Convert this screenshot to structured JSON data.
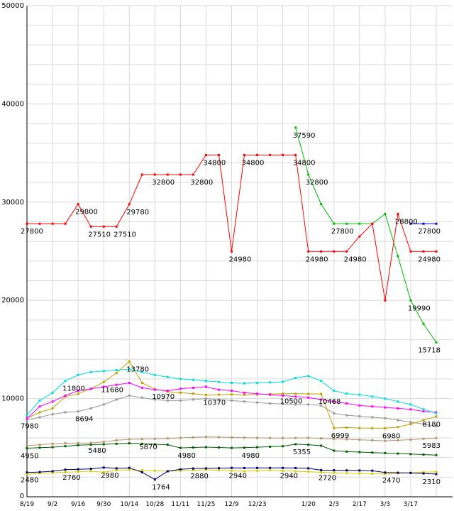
{
  "page": {
    "background": "#ffffff"
  },
  "chart_data": {
    "type": "line",
    "title": "",
    "x_count": 33,
    "ylim": [
      0,
      50000
    ],
    "y_ticks": [
      0,
      10000,
      20000,
      30000,
      40000,
      50000
    ],
    "y_minor_step": 2000,
    "grid_color": "#d9d9d9",
    "axis_color": "#000000",
    "label_color": "#000000",
    "x_ticks": [
      {
        "i": 0,
        "label": "8/19"
      },
      {
        "i": 2,
        "label": "9/2"
      },
      {
        "i": 4,
        "label": "9/16"
      },
      {
        "i": 6,
        "label": "9/30"
      },
      {
        "i": 8,
        "label": "10/14"
      },
      {
        "i": 10,
        "label": "10/28"
      },
      {
        "i": 12,
        "label": "11/11"
      },
      {
        "i": 14,
        "label": "11/25"
      },
      {
        "i": 16,
        "label": "12/9"
      },
      {
        "i": 18,
        "label": "12/23"
      },
      {
        "i": 22,
        "label": "1/20"
      },
      {
        "i": 24,
        "label": "2/3"
      },
      {
        "i": 26,
        "label": "2/17"
      },
      {
        "i": 28,
        "label": "3/3"
      },
      {
        "i": 30,
        "label": "3/17"
      }
    ],
    "series": [
      {
        "name": "yellow",
        "color": "#ddcc00",
        "values": [
          2300,
          2400,
          2450,
          2500,
          2550,
          2600,
          2500,
          2700,
          2750,
          2700,
          2650,
          2600,
          2650,
          2700,
          2750,
          2700,
          2650,
          2600,
          2650,
          2700,
          2650,
          2600,
          2550,
          2500,
          2450,
          2400,
          2380,
          2350,
          2320,
          2400,
          2450,
          2500,
          2550
        ]
      },
      {
        "name": "navy",
        "color": "#000066",
        "values": [
          2480,
          2520,
          2600,
          2760,
          2800,
          2850,
          2980,
          2900,
          2950,
          2500,
          1764,
          2600,
          2800,
          2880,
          2900,
          2910,
          2940,
          2930,
          2940,
          2940,
          2940,
          2930,
          2900,
          2720,
          2700,
          2690,
          2680,
          2660,
          2470,
          2450,
          2430,
          2380,
          2310
        ]
      },
      {
        "name": "darkgreen",
        "color": "#005f00",
        "values": [
          4950,
          5000,
          5050,
          5150,
          5250,
          5300,
          5350,
          5400,
          5450,
          5400,
          5350,
          5300,
          4980,
          5020,
          5060,
          5020,
          4980,
          5000,
          5050,
          5100,
          5150,
          5355,
          5300,
          5200,
          4700,
          4600,
          4550,
          4500,
          4450,
          4400,
          4350,
          4300,
          4250
        ]
      },
      {
        "name": "tan",
        "color": "#b49569",
        "values": [
          5200,
          5300,
          5400,
          5450,
          5470,
          5480,
          5600,
          5750,
          5850,
          5870,
          5900,
          5950,
          6000,
          6050,
          6100,
          6080,
          6050,
          6020,
          6000,
          5990,
          5980,
          5990,
          6000,
          5950,
          5900,
          5850,
          5800,
          5750,
          5700,
          5750,
          5820,
          5900,
          5983
        ]
      },
      {
        "name": "gray",
        "color": "#999999",
        "values": [
          7800,
          8100,
          8400,
          8600,
          8694,
          9000,
          9400,
          9900,
          10300,
          10100,
          9900,
          9800,
          9800,
          9900,
          10000,
          9900,
          9800,
          9700,
          9600,
          9500,
          9450,
          9400,
          9400,
          9300,
          8500,
          8300,
          8200,
          8100,
          8000,
          7800,
          7600,
          7400,
          7200
        ]
      },
      {
        "name": "gold",
        "color": "#c0a000",
        "values": [
          8000,
          8600,
          9000,
          10200,
          10500,
          11000,
          11680,
          12600,
          13780,
          11600,
          10970,
          10700,
          10600,
          10500,
          10370,
          10400,
          10420,
          10380,
          10420,
          10460,
          10500,
          10490,
          10480,
          10468,
          6999,
          7050,
          7000,
          6990,
          6980,
          7100,
          7400,
          7800,
          8180
        ]
      },
      {
        "name": "magenta",
        "color": "#ff00ff",
        "values": [
          7980,
          9200,
          9700,
          10300,
          10800,
          11000,
          11200,
          11400,
          11600,
          11100,
          10900,
          10800,
          11000,
          11100,
          11200,
          10900,
          10800,
          10600,
          10500,
          10400,
          10300,
          10200,
          10100,
          9900,
          9700,
          9500,
          9300,
          9200,
          9100,
          9000,
          8900,
          8700,
          8600
        ]
      },
      {
        "name": "cyan",
        "color": "#00dddd",
        "values": [
          8300,
          9800,
          10600,
          11800,
          12400,
          12700,
          12800,
          12900,
          13000,
          12700,
          12400,
          12200,
          12000,
          11900,
          11800,
          11700,
          11600,
          11550,
          11600,
          11650,
          11700,
          12100,
          12300,
          11800,
          10800,
          10500,
          10400,
          10200,
          10000,
          9700,
          9400,
          8900,
          8500
        ]
      },
      {
        "name": "blue",
        "color": "#0000dd",
        "values": [
          null,
          null,
          null,
          null,
          null,
          null,
          null,
          null,
          null,
          null,
          null,
          null,
          null,
          null,
          null,
          null,
          null,
          null,
          null,
          null,
          null,
          null,
          null,
          null,
          null,
          null,
          null,
          null,
          null,
          null,
          27800,
          27800,
          27800
        ]
      },
      {
        "name": "green",
        "color": "#00bb00",
        "values": [
          null,
          null,
          null,
          null,
          null,
          null,
          null,
          null,
          null,
          null,
          null,
          null,
          null,
          null,
          null,
          null,
          null,
          null,
          null,
          null,
          null,
          37590,
          32800,
          29800,
          27800,
          27800,
          27800,
          27800,
          28800,
          24500,
          19990,
          17600,
          15718
        ]
      },
      {
        "name": "red",
        "color": "#ff0000",
        "values": [
          27800,
          27800,
          27800,
          27800,
          29800,
          27510,
          27510,
          27510,
          29780,
          32800,
          32800,
          32800,
          32800,
          32800,
          34800,
          34800,
          24980,
          34800,
          34800,
          34800,
          34800,
          34800,
          24980,
          24980,
          24980,
          24980,
          26500,
          27800,
          19990,
          28800,
          24980,
          24980,
          24980
        ]
      }
    ],
    "annotations": [
      {
        "series": "red",
        "i": 0,
        "text": "27800"
      },
      {
        "series": "red",
        "i": 4,
        "text": "29800"
      },
      {
        "series": "red",
        "i": 5,
        "text": "27510"
      },
      {
        "series": "red",
        "i": 7,
        "text": "27510"
      },
      {
        "series": "red",
        "i": 8,
        "text": "29780"
      },
      {
        "series": "red",
        "i": 10,
        "text": "32800"
      },
      {
        "series": "red",
        "i": 13,
        "text": "32800"
      },
      {
        "series": "red",
        "i": 14,
        "text": "34800"
      },
      {
        "series": "red",
        "i": 16,
        "text": "24980"
      },
      {
        "series": "red",
        "i": 17,
        "text": "34800"
      },
      {
        "series": "red",
        "i": 21,
        "text": "34800"
      },
      {
        "series": "red",
        "i": 22,
        "text": "24980"
      },
      {
        "series": "red",
        "i": 25,
        "text": "24980"
      },
      {
        "series": "red",
        "i": 29,
        "text": "28800"
      },
      {
        "series": "red",
        "i": 32,
        "text": "24980"
      },
      {
        "series": "green",
        "i": 21,
        "text": "37590"
      },
      {
        "series": "green",
        "i": 22,
        "text": "32800"
      },
      {
        "series": "green",
        "i": 24,
        "text": "27800"
      },
      {
        "series": "green",
        "i": 30,
        "text": "19990"
      },
      {
        "series": "green",
        "i": 32,
        "text": "15718"
      },
      {
        "series": "blue",
        "i": 32,
        "text": "27800"
      },
      {
        "series": "cyan",
        "i": 3,
        "text": "11800"
      },
      {
        "series": "magenta",
        "i": 0,
        "text": "7980"
      },
      {
        "series": "gold",
        "i": 6,
        "text": "11680"
      },
      {
        "series": "gold",
        "i": 8,
        "text": "13780"
      },
      {
        "series": "gold",
        "i": 10,
        "text": "10970"
      },
      {
        "series": "gold",
        "i": 14,
        "text": "10370"
      },
      {
        "series": "gold",
        "i": 20,
        "text": "10500"
      },
      {
        "series": "gold",
        "i": 23,
        "text": "10468"
      },
      {
        "series": "gold",
        "i": 24,
        "text": "6999"
      },
      {
        "series": "gold",
        "i": 28,
        "text": "6980"
      },
      {
        "series": "gold",
        "i": 32,
        "text": "8180"
      },
      {
        "series": "gray",
        "i": 4,
        "text": "8694"
      },
      {
        "series": "tan",
        "i": 5,
        "text": "5480"
      },
      {
        "series": "tan",
        "i": 9,
        "text": "5870"
      },
      {
        "series": "tan",
        "i": 32,
        "text": "5983"
      },
      {
        "series": "darkgreen",
        "i": 0,
        "text": "4950"
      },
      {
        "series": "darkgreen",
        "i": 12,
        "text": "4980"
      },
      {
        "series": "darkgreen",
        "i": 17,
        "text": "4980"
      },
      {
        "series": "darkgreen",
        "i": 21,
        "text": "5355"
      },
      {
        "series": "navy",
        "i": 0,
        "text": "2480"
      },
      {
        "series": "navy",
        "i": 3,
        "text": "2760"
      },
      {
        "series": "navy",
        "i": 6,
        "text": "2980"
      },
      {
        "series": "navy",
        "i": 10,
        "text": "1764"
      },
      {
        "series": "navy",
        "i": 13,
        "text": "2880"
      },
      {
        "series": "navy",
        "i": 16,
        "text": "2940"
      },
      {
        "series": "navy",
        "i": 20,
        "text": "2940"
      },
      {
        "series": "navy",
        "i": 23,
        "text": "2720"
      },
      {
        "series": "navy",
        "i": 28,
        "text": "2470"
      },
      {
        "series": "navy",
        "i": 32,
        "text": "2310"
      }
    ]
  }
}
